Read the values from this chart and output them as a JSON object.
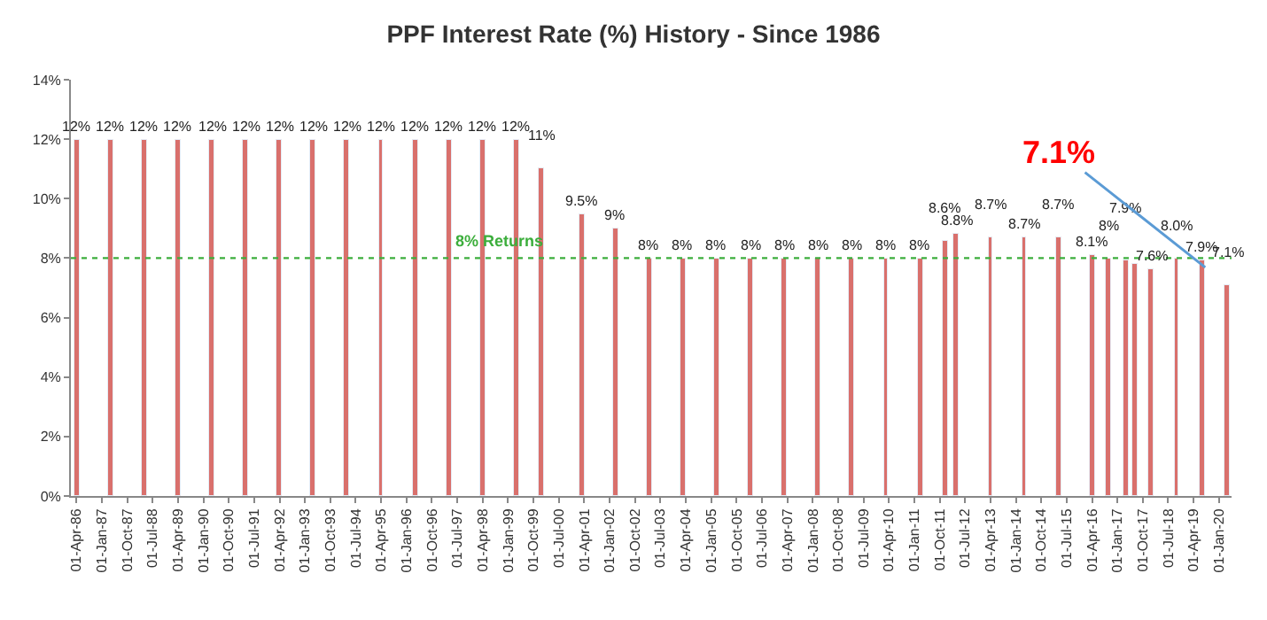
{
  "chart_data": {
    "type": "bar",
    "title": "PPF Interest Rate (%) History - Since 1986",
    "color": "#d9706c",
    "x": [
      "1986-04",
      "1987-04",
      "1988-04",
      "1989-04",
      "1990-04",
      "1991-04",
      "1992-04",
      "1993-04",
      "1994-04",
      "1995-04",
      "1996-04",
      "1997-04",
      "1998-04",
      "1999-04",
      "2000-01",
      "2001-03",
      "2002-03",
      "2003-03",
      "2004-03",
      "2005-03",
      "2006-03",
      "2007-03",
      "2008-03",
      "2009-03",
      "2010-03",
      "2011-03",
      "2011-12",
      "2012-04",
      "2013-04",
      "2014-04",
      "2015-04",
      "2016-04",
      "2016-10",
      "2017-04",
      "2017-07",
      "2018-01",
      "2018-10",
      "2019-07",
      "2020-04"
    ],
    "values": [
      12,
      12,
      12,
      12,
      12,
      12,
      12,
      12,
      12,
      12,
      12,
      12,
      12,
      12,
      11,
      9.5,
      9,
      8,
      8,
      8,
      8,
      8,
      8,
      8,
      8,
      8,
      8.6,
      8.8,
      8.7,
      8.7,
      8.7,
      8.1,
      8,
      7.9,
      7.8,
      7.6,
      8.0,
      7.9,
      7.1
    ],
    "value_labels": [
      "12%",
      "12%",
      "12%",
      "12%",
      "12%",
      "12%",
      "12%",
      "12%",
      "12%",
      "12%",
      "12%",
      "12%",
      "12%",
      "12%",
      "11%",
      "9.5%",
      "9%",
      "8%",
      "8%",
      "8%",
      "8%",
      "8%",
      "8%",
      "8%",
      "8%",
      "8%",
      "8.6%",
      "8.8%",
      "8.7%",
      "8.7%",
      "8.7%",
      "8.1%",
      "8%",
      "7.9%",
      null,
      "7.6%",
      "8.0%",
      "7.9%",
      "7.1%"
    ],
    "xlim": [
      "1986-02-01",
      "2020-05-15"
    ],
    "xticks": [
      {
        "value": "1986-04-01",
        "label": "01-Apr-86"
      },
      {
        "value": "1987-01-01",
        "label": "01-Jan-87"
      },
      {
        "value": "1987-10-01",
        "label": "01-Oct-87"
      },
      {
        "value": "1988-07-01",
        "label": "01-Jul-88"
      },
      {
        "value": "1989-04-01",
        "label": "01-Apr-89"
      },
      {
        "value": "1990-01-01",
        "label": "01-Jan-90"
      },
      {
        "value": "1990-10-01",
        "label": "01-Oct-90"
      },
      {
        "value": "1991-07-01",
        "label": "01-Jul-91"
      },
      {
        "value": "1992-04-01",
        "label": "01-Apr-92"
      },
      {
        "value": "1993-01-01",
        "label": "01-Jan-93"
      },
      {
        "value": "1993-10-01",
        "label": "01-Oct-93"
      },
      {
        "value": "1994-07-01",
        "label": "01-Jul-94"
      },
      {
        "value": "1995-04-01",
        "label": "01-Apr-95"
      },
      {
        "value": "1996-01-01",
        "label": "01-Jan-96"
      },
      {
        "value": "1996-10-01",
        "label": "01-Oct-96"
      },
      {
        "value": "1997-07-01",
        "label": "01-Jul-97"
      },
      {
        "value": "1998-04-01",
        "label": "01-Apr-98"
      },
      {
        "value": "1999-01-01",
        "label": "01-Jan-99"
      },
      {
        "value": "1999-10-01",
        "label": "01-Oct-99"
      },
      {
        "value": "2000-07-01",
        "label": "01-Jul-00"
      },
      {
        "value": "2001-04-01",
        "label": "01-Apr-01"
      },
      {
        "value": "2002-01-01",
        "label": "01-Jan-02"
      },
      {
        "value": "2002-10-01",
        "label": "01-Oct-02"
      },
      {
        "value": "2003-07-01",
        "label": "01-Jul-03"
      },
      {
        "value": "2004-04-01",
        "label": "01-Apr-04"
      },
      {
        "value": "2005-01-01",
        "label": "01-Jan-05"
      },
      {
        "value": "2005-10-01",
        "label": "01-Oct-05"
      },
      {
        "value": "2006-07-01",
        "label": "01-Jul-06"
      },
      {
        "value": "2007-04-01",
        "label": "01-Apr-07"
      },
      {
        "value": "2008-01-01",
        "label": "01-Jan-08"
      },
      {
        "value": "2008-10-01",
        "label": "01-Oct-08"
      },
      {
        "value": "2009-07-01",
        "label": "01-Jul-09"
      },
      {
        "value": "2010-04-01",
        "label": "01-Apr-10"
      },
      {
        "value": "2011-01-01",
        "label": "01-Jan-11"
      },
      {
        "value": "2011-10-01",
        "label": "01-Oct-11"
      },
      {
        "value": "2012-07-01",
        "label": "01-Jul-12"
      },
      {
        "value": "2013-04-01",
        "label": "01-Apr-13"
      },
      {
        "value": "2014-01-01",
        "label": "01-Jan-14"
      },
      {
        "value": "2014-10-01",
        "label": "01-Oct-14"
      },
      {
        "value": "2015-07-01",
        "label": "01-Jul-15"
      },
      {
        "value": "2016-04-01",
        "label": "01-Apr-16"
      },
      {
        "value": "2017-01-01",
        "label": "01-Jan-17"
      },
      {
        "value": "2017-10-01",
        "label": "01-Oct-17"
      },
      {
        "value": "2018-07-01",
        "label": "01-Jul-18"
      },
      {
        "value": "2019-04-01",
        "label": "01-Apr-19"
      },
      {
        "value": "2020-01-01",
        "label": "01-Jan-20"
      }
    ],
    "ylim": [
      0,
      14
    ],
    "yticks": [
      {
        "value": 0,
        "label": "0%"
      },
      {
        "value": 2,
        "label": "2%"
      },
      {
        "value": 4,
        "label": "4%"
      },
      {
        "value": 6,
        "label": "6%"
      },
      {
        "value": 8,
        "label": "8%"
      },
      {
        "value": 10,
        "label": "10%"
      },
      {
        "value": 12,
        "label": "12%"
      },
      {
        "value": 14,
        "label": "14%"
      }
    ],
    "ref_lines": [
      {
        "axis": "y",
        "value": 8,
        "label": "8% Returns",
        "color": "#3cae3c",
        "line_style": "dotted"
      }
    ],
    "annotations": [
      {
        "text": "7.1%",
        "x": "2020-04",
        "y": 7.1
      }
    ]
  }
}
